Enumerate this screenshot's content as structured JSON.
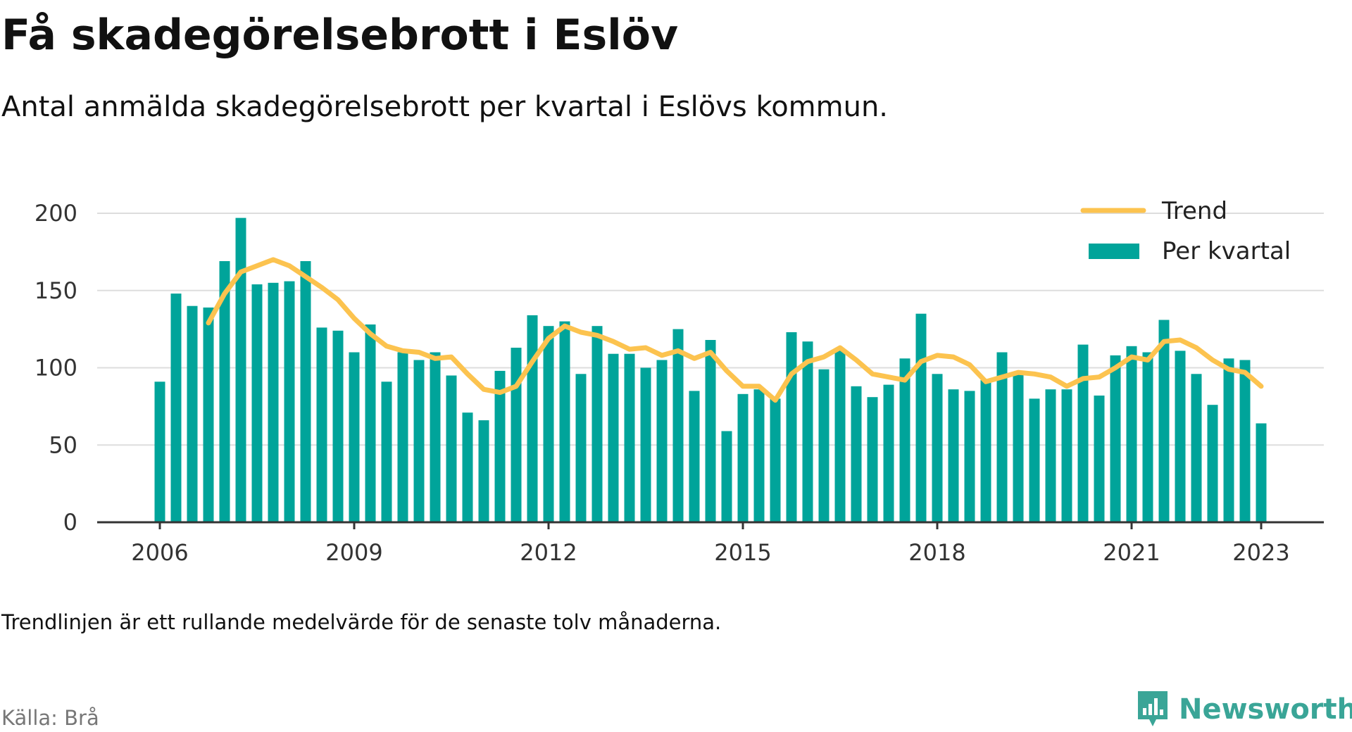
{
  "header": {
    "title": "Få skadegörelsebrott i Eslöv",
    "subtitle": "Antal anmälda skadegörelsebrott per kvartal i Eslövs kommun."
  },
  "footer": {
    "note": "Trendlinjen är ett rullande medelvärde för de senaste tolv månaderna.",
    "source": "Källa: Brå",
    "brand": "Newsworthy"
  },
  "colors": {
    "bar": "#00a49a",
    "trend": "#fcc34f",
    "brand": "#3aa597",
    "grid": "#dddddd",
    "axis": "#333333"
  },
  "icons": {
    "brand_logo": "newsworthy-chart-logo-icon"
  },
  "chart_data": {
    "type": "bar",
    "title": "Få skadegörelsebrott i Eslöv",
    "subtitle": "Antal anmälda skadegörelsebrott per kvartal i Eslövs kommun.",
    "xlabel": "",
    "ylabel": "",
    "ylim": [
      0,
      200
    ],
    "yticks": [
      0,
      50,
      100,
      150,
      200
    ],
    "xticks": [
      "2006",
      "2009",
      "2012",
      "2015",
      "2018",
      "2021",
      "2023"
    ],
    "grid": true,
    "legend": "top-right",
    "categories": [
      "2006 Q1",
      "2006 Q2",
      "2006 Q3",
      "2006 Q4",
      "2007 Q1",
      "2007 Q2",
      "2007 Q3",
      "2007 Q4",
      "2008 Q1",
      "2008 Q2",
      "2008 Q3",
      "2008 Q4",
      "2009 Q1",
      "2009 Q2",
      "2009 Q3",
      "2009 Q4",
      "2010 Q1",
      "2010 Q2",
      "2010 Q3",
      "2010 Q4",
      "2011 Q1",
      "2011 Q2",
      "2011 Q3",
      "2011 Q4",
      "2012 Q1",
      "2012 Q2",
      "2012 Q3",
      "2012 Q4",
      "2013 Q1",
      "2013 Q2",
      "2013 Q3",
      "2013 Q4",
      "2014 Q1",
      "2014 Q2",
      "2014 Q3",
      "2014 Q4",
      "2015 Q1",
      "2015 Q2",
      "2015 Q3",
      "2015 Q4",
      "2016 Q1",
      "2016 Q2",
      "2016 Q3",
      "2016 Q4",
      "2017 Q1",
      "2017 Q2",
      "2017 Q3",
      "2017 Q4",
      "2018 Q1",
      "2018 Q2",
      "2018 Q3",
      "2018 Q4",
      "2019 Q1",
      "2019 Q2",
      "2019 Q3",
      "2019 Q4",
      "2020 Q1",
      "2020 Q2",
      "2020 Q3",
      "2020 Q4",
      "2021 Q1",
      "2021 Q2",
      "2021 Q3",
      "2021 Q4",
      "2022 Q1",
      "2022 Q2",
      "2022 Q3",
      "2022 Q4",
      "2023 Q1"
    ],
    "series": [
      {
        "name": "Per kvartal",
        "type": "bar",
        "values": [
          91,
          148,
          140,
          139,
          169,
          197,
          154,
          155,
          156,
          169,
          126,
          124,
          110,
          128,
          91,
          110,
          105,
          110,
          95,
          71,
          66,
          98,
          113,
          134,
          127,
          130,
          96,
          127,
          109,
          109,
          100,
          105,
          125,
          85,
          118,
          59,
          83,
          86,
          80,
          123,
          117,
          99,
          112,
          88,
          81,
          89,
          106,
          135,
          96,
          86,
          85,
          92,
          110,
          97,
          80,
          86,
          86,
          115,
          82,
          108,
          114,
          110,
          131,
          111,
          96,
          76,
          106,
          105,
          64
        ]
      },
      {
        "name": "Trend",
        "type": "line",
        "values": [
          null,
          null,
          null,
          129,
          148,
          162,
          166,
          170,
          166,
          159,
          152,
          144,
          132,
          122,
          114,
          111,
          110,
          106,
          107,
          96,
          86,
          84,
          88,
          104,
          119,
          127,
          123,
          121,
          117,
          112,
          113,
          108,
          111,
          106,
          110,
          98,
          88,
          88,
          79,
          96,
          104,
          107,
          113,
          105,
          96,
          94,
          92,
          104,
          108,
          107,
          102,
          91,
          94,
          97,
          96,
          94,
          88,
          93,
          94,
          100,
          107,
          105,
          117,
          118,
          113,
          105,
          99,
          97,
          88
        ]
      }
    ]
  }
}
